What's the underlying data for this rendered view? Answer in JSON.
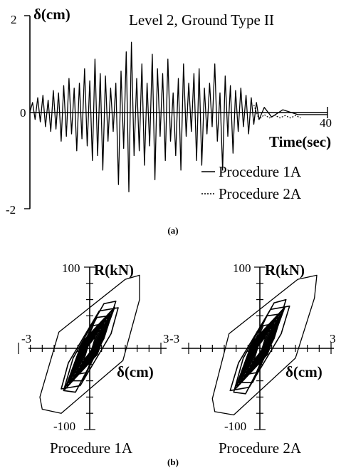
{
  "figure": {
    "panel_a_label": "(a)",
    "panel_b_label": "(b)"
  },
  "chart_data": [
    {
      "type": "line",
      "panel": "(a)",
      "title": "Level 2, Ground Type II",
      "ylabel": "δ(cm)",
      "xlabel": "Time(sec)",
      "xlim": [
        0,
        40
      ],
      "ylim": [
        -2,
        2
      ],
      "x_tick_labels": [
        "40"
      ],
      "y_tick_labels": [
        "2",
        "0",
        "-2"
      ],
      "grid": false,
      "legend_position": "bottom-right",
      "legend": [
        "Procedure 1A",
        "Procedure 2A"
      ],
      "series": [
        {
          "name": "Procedure 1A",
          "style": "solid",
          "x": [
            0,
            0.35,
            0.7,
            1.05,
            1.4,
            1.75,
            2.1,
            2.45,
            2.8,
            3.15,
            3.5,
            3.85,
            4.2,
            4.55,
            4.9,
            5.25,
            5.6,
            5.95,
            6.3,
            6.65,
            7.0,
            7.35,
            7.7,
            8.05,
            8.4,
            8.75,
            9.1,
            9.45,
            9.8,
            10.15,
            10.5,
            10.85,
            11.2,
            11.55,
            11.9,
            12.25,
            12.6,
            12.95,
            13.3,
            13.65,
            14.0,
            14.35,
            14.7,
            15.05,
            15.4,
            15.75,
            16.1,
            16.45,
            16.8,
            17.15,
            17.5,
            17.85,
            18.2,
            18.55,
            18.9,
            19.25,
            19.6,
            19.95,
            20.3,
            20.65,
            21.0,
            21.35,
            21.7,
            22.05,
            22.4,
            22.75,
            23.1,
            23.45,
            23.8,
            24.15,
            24.5,
            24.85,
            25.2,
            25.55,
            25.9,
            26.25,
            26.6,
            26.95,
            27.3,
            27.65,
            28.0,
            28.35,
            28.7,
            29.05,
            29.4,
            29.75,
            30.1,
            30.45,
            30.8,
            31.5,
            32.5,
            34,
            36,
            40
          ],
          "y": [
            0,
            0.2,
            -0.15,
            0.3,
            -0.2,
            0.35,
            -0.3,
            0.25,
            -0.4,
            0.45,
            -0.35,
            0.4,
            -0.6,
            0.55,
            -0.5,
            0.7,
            -0.45,
            0.5,
            -0.8,
            0.6,
            -0.55,
            0.9,
            -0.7,
            0.65,
            -1.0,
            1.1,
            -0.9,
            0.8,
            -1.2,
            0.75,
            -0.6,
            0.5,
            -0.4,
            0.6,
            -1.5,
            0.85,
            -0.75,
            1.25,
            -1.65,
            1.45,
            -0.9,
            0.7,
            -0.8,
            1.0,
            -1.1,
            0.6,
            -0.7,
            1.2,
            -1.4,
            0.9,
            -0.5,
            0.8,
            -1.0,
            1.1,
            -0.6,
            0.4,
            -0.9,
            0.7,
            -1.2,
            1.0,
            -0.5,
            0.6,
            -0.4,
            0.8,
            -1.0,
            0.9,
            -1.1,
            0.5,
            -0.45,
            0.6,
            -0.3,
            1.0,
            -0.6,
            0.4,
            -1.2,
            0.75,
            -0.5,
            0.55,
            -0.85,
            0.45,
            -0.4,
            0.5,
            -0.3,
            0.35,
            -0.45,
            0.3,
            -0.25,
            0.2,
            -0.15,
            0.1,
            -0.1,
            0.05,
            -0.05,
            -0.05
          ]
        },
        {
          "name": "Procedure 2A",
          "style": "dotted",
          "x": [
            30.1,
            30.8,
            31.5,
            32.2,
            32.9,
            33.6,
            34.3,
            35.0,
            35.7,
            36.4
          ],
          "y": [
            0.15,
            -0.15,
            -0.05,
            -0.12,
            -0.06,
            -0.12,
            -0.07,
            -0.12,
            -0.07,
            -0.12
          ]
        }
      ]
    },
    {
      "type": "line",
      "panel": "(b)",
      "title": "Procedure 1A",
      "xlabel": "δ(cm)",
      "ylabel": "R(kN)",
      "xlim": [
        -3,
        3
      ],
      "ylim": [
        -100,
        100
      ],
      "x_tick_labels": [
        "-3",
        "3"
      ],
      "y_tick_labels": [
        "100",
        "-100"
      ],
      "grid": false,
      "loops": [
        {
          "x": [
            2.1,
            1.5,
            -1.3,
            -2.1,
            -2.0,
            -1.2,
            1.4,
            2.1,
            2.1
          ],
          "y": [
            90,
            85,
            20,
            -60,
            -75,
            -80,
            -15,
            60,
            90
          ]
        },
        {
          "x": [
            1.1,
            0.6,
            -0.7,
            -1.1,
            -0.6,
            0.6,
            1.1
          ],
          "y": [
            58,
            55,
            -12,
            -52,
            -54,
            12,
            58
          ]
        },
        {
          "x": [
            0.8,
            0.3,
            -0.5,
            -0.8,
            -0.3,
            0.5,
            0.8
          ],
          "y": [
            40,
            38,
            -8,
            -40,
            -40,
            8,
            40
          ]
        },
        {
          "x": [
            0.55,
            0.15,
            -0.35,
            -0.55,
            -0.15,
            0.35,
            0.55
          ],
          "y": [
            30,
            28,
            -4,
            -32,
            -30,
            4,
            30
          ]
        },
        {
          "x": [
            1.2,
            0.4,
            -0.9,
            -1.2,
            -0.4,
            0.9,
            1.2
          ],
          "y": [
            50,
            46,
            -18,
            -50,
            -46,
            18,
            50
          ]
        }
      ]
    },
    {
      "type": "line",
      "panel": "(b)",
      "title": "Procedure 2A",
      "xlabel": "δ(cm)",
      "ylabel": "R(kN)",
      "xlim": [
        -3,
        3
      ],
      "ylim": [
        -100,
        100
      ],
      "x_tick_labels": [
        "-3",
        "3"
      ],
      "y_tick_labels": [
        "100",
        "-100"
      ],
      "grid": false,
      "loops": [
        {
          "x": [
            2.4,
            1.6,
            -1.3,
            -2.0,
            -1.9,
            -1.1,
            1.5,
            2.3,
            2.4
          ],
          "y": [
            90,
            85,
            18,
            -62,
            -78,
            -82,
            -12,
            62,
            90
          ]
        },
        {
          "x": [
            1.1,
            0.6,
            -0.7,
            -1.1,
            -0.6,
            0.6,
            1.1
          ],
          "y": [
            60,
            56,
            -12,
            -54,
            -56,
            12,
            60
          ]
        },
        {
          "x": [
            0.8,
            0.3,
            -0.5,
            -0.8,
            -0.3,
            0.5,
            0.8
          ],
          "y": [
            42,
            40,
            -8,
            -42,
            -42,
            8,
            42
          ]
        },
        {
          "x": [
            0.55,
            0.15,
            -0.35,
            -0.55,
            -0.15,
            0.35,
            0.55
          ],
          "y": [
            30,
            28,
            -4,
            -32,
            -30,
            4,
            30
          ]
        },
        {
          "x": [
            1.25,
            0.45,
            -0.9,
            -1.25,
            -0.45,
            0.9,
            1.25
          ],
          "y": [
            52,
            48,
            -18,
            -52,
            -48,
            18,
            52
          ]
        }
      ]
    }
  ]
}
